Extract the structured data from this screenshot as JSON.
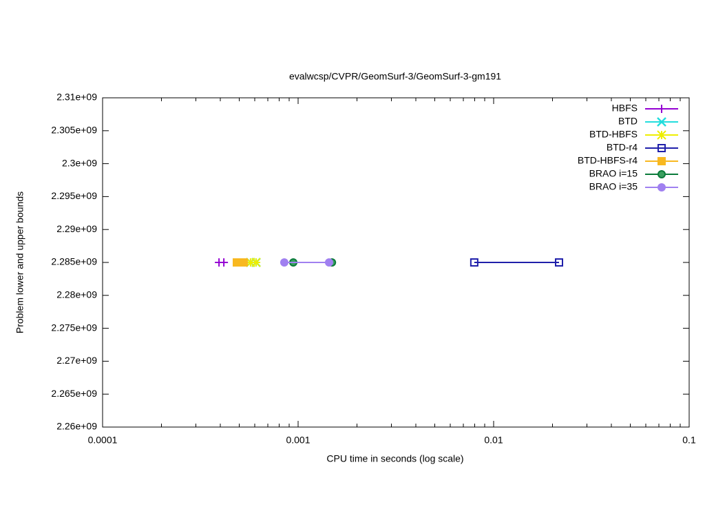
{
  "chart_data": {
    "type": "line",
    "title": "evalwcsp/CVPR/GeomSurf-3/GeomSurf-3-gm191",
    "x_label": "CPU time in seconds (log scale)",
    "y_label": "Problem lower and upper bounds",
    "x_log_scale": true,
    "xlim": [
      0.0001,
      0.1
    ],
    "xticks": [
      0.0001,
      0.001,
      0.01,
      0.1
    ],
    "ylim": [
      2260000000,
      2310000000
    ],
    "yticks": [
      {
        "value": 2260000000,
        "label": "2.26e+09"
      },
      {
        "value": 2265000000,
        "label": "2.265e+09"
      },
      {
        "value": 2270000000,
        "label": "2.27e+09"
      },
      {
        "value": 2275000000,
        "label": "2.275e+09"
      },
      {
        "value": 2280000000,
        "label": "2.28e+09"
      },
      {
        "value": 2285000000,
        "label": "2.285e+09"
      },
      {
        "value": 2290000000,
        "label": "2.29e+09"
      },
      {
        "value": 2295000000,
        "label": "2.295e+09"
      },
      {
        "value": 2300000000,
        "label": "2.3e+09"
      },
      {
        "value": 2305000000,
        "label": "2.305e+09"
      },
      {
        "value": 2310000000,
        "label": "2.31e+09"
      }
    ],
    "legend": "upper right",
    "series": [
      {
        "name": "HBFS",
        "color": "#9400d3",
        "marker": "plus",
        "x": [
          0.000394,
          0.000417
        ],
        "values": [
          2285000000,
          2285000000
        ]
      },
      {
        "name": "BTD",
        "color": "#22dddd",
        "marker": "cross",
        "x": [
          0.000571,
          0.00061
        ],
        "values": [
          2285000000,
          2285000000
        ]
      },
      {
        "name": "BTD-HBFS",
        "color": "#eeee00",
        "marker": "star",
        "x": [
          0.000571,
          0.00061
        ],
        "values": [
          2285000000,
          2285000000
        ]
      },
      {
        "name": "BTD-r4",
        "color": "#1f1faa",
        "marker": "open-square",
        "x": [
          0.00796,
          0.0216
        ],
        "values": [
          2285000000,
          2285000000
        ]
      },
      {
        "name": "BTD-HBFS-r4",
        "color": "#f8b820",
        "marker": "filled-square",
        "x": [
          0.000486,
          0.000527
        ],
        "values": [
          2285000000,
          2285000000
        ]
      },
      {
        "name": "BRAO i=15",
        "color": "#0a7a3a",
        "marker": "ring",
        "x": [
          0.000945,
          0.00149
        ],
        "values": [
          2285000000,
          2285000000
        ]
      },
      {
        "name": "BRAO i=35",
        "color": "#a080f0",
        "marker": "filled-circle",
        "x": [
          0.00085,
          0.00144
        ],
        "values": [
          2285000000,
          2285000000
        ]
      }
    ]
  }
}
